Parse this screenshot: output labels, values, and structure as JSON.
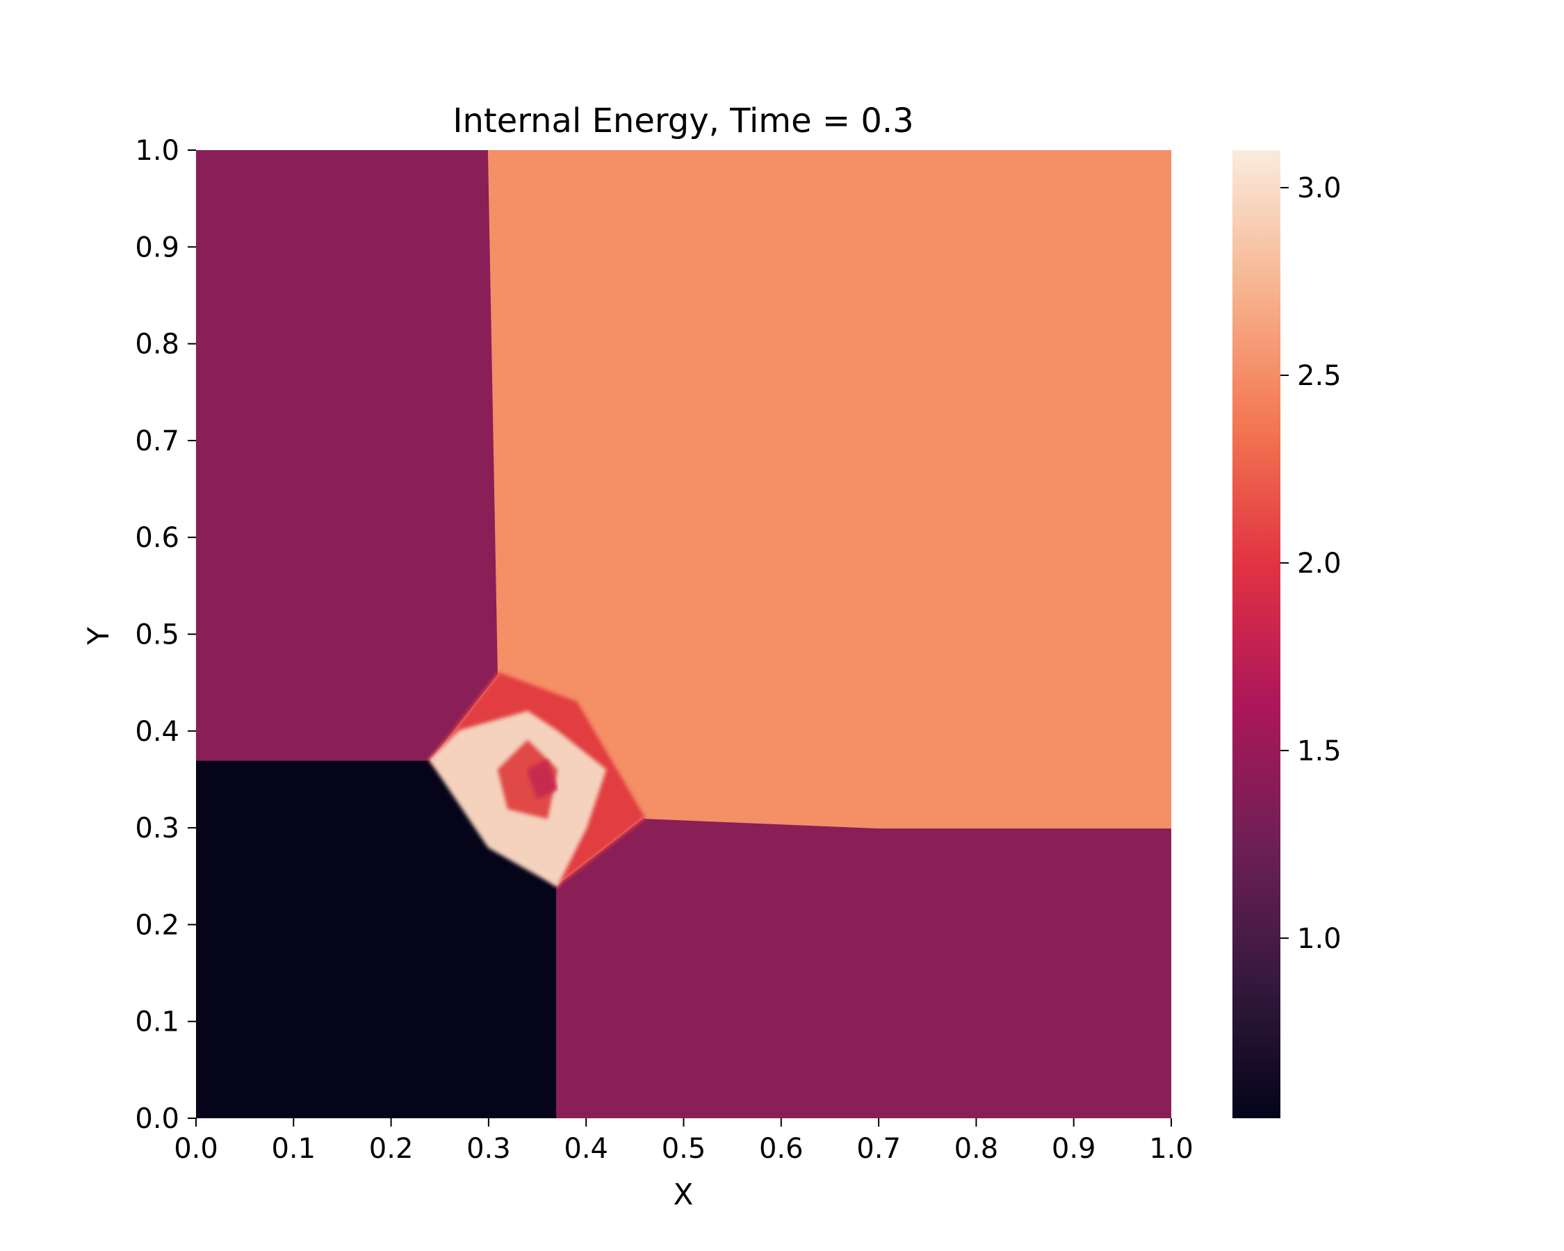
{
  "chart_data": {
    "type": "heatmap",
    "title": "Internal Energy, Time = 0.3",
    "xlabel": "X",
    "ylabel": "Y",
    "xlim": [
      0.0,
      1.0
    ],
    "ylim": [
      0.0,
      1.0
    ],
    "x_ticks": [
      "0.0",
      "0.1",
      "0.2",
      "0.3",
      "0.4",
      "0.5",
      "0.6",
      "0.7",
      "0.8",
      "0.9",
      "1.0"
    ],
    "y_ticks": [
      "0.0",
      "0.1",
      "0.2",
      "0.3",
      "0.4",
      "0.5",
      "0.6",
      "0.7",
      "0.8",
      "0.9",
      "1.0"
    ],
    "grid": false,
    "colormap": "rocket",
    "colorbar": {
      "range": [
        0.52,
        3.1
      ],
      "ticks": [
        "1.0",
        "1.5",
        "2.0",
        "2.5",
        "3.0"
      ],
      "tick_values": [
        1.0,
        1.5,
        2.0,
        2.5,
        3.0
      ],
      "colors": [
        "#03051a",
        "#36193e",
        "#701f57",
        "#ad1759",
        "#e13342",
        "#f37651",
        "#f6b48f",
        "#faebdd"
      ]
    },
    "regions": [
      {
        "name": "lower-left quadrant",
        "value": 0.55,
        "color": "#050419",
        "polygon": [
          [
            0,
            0
          ],
          [
            0.37,
            0
          ],
          [
            0.37,
            0.24
          ],
          [
            0.24,
            0.37
          ],
          [
            0,
            0.37
          ]
        ]
      },
      {
        "name": "upper-left quadrant",
        "value": 1.5,
        "color": "#8a1e57",
        "polygon": [
          [
            0,
            0.37
          ],
          [
            0.24,
            0.37
          ],
          [
            0.31,
            0.46
          ],
          [
            0.3,
            1.0
          ],
          [
            0,
            1.0
          ]
        ]
      },
      {
        "name": "lower-right quadrant",
        "value": 1.5,
        "color": "#8a1e57",
        "polygon": [
          [
            0.37,
            0
          ],
          [
            1.0,
            0
          ],
          [
            1.0,
            0.3
          ],
          [
            0.7,
            0.3
          ],
          [
            0.46,
            0.31
          ],
          [
            0.37,
            0.24
          ]
        ]
      },
      {
        "name": "upper-right quadrant",
        "value": 2.5,
        "color": "#f48f66",
        "polygon": [
          [
            0.3,
            1.0
          ],
          [
            1.0,
            1.0
          ],
          [
            1.0,
            0.3
          ],
          [
            0.7,
            0.3
          ],
          [
            0.46,
            0.31
          ],
          [
            0.31,
            0.46
          ]
        ]
      },
      {
        "name": "interaction zone",
        "value": 2.1,
        "color": "#e23c40",
        "polygon": [
          [
            0.24,
            0.37
          ],
          [
            0.31,
            0.46
          ],
          [
            0.39,
            0.43
          ],
          [
            0.46,
            0.31
          ],
          [
            0.37,
            0.24
          ]
        ]
      },
      {
        "name": "jet core",
        "value": 3.0,
        "color": "#f4d2bd",
        "polygon": [
          [
            0.24,
            0.37
          ],
          [
            0.27,
            0.4
          ],
          [
            0.34,
            0.42
          ],
          [
            0.37,
            0.4
          ],
          [
            0.42,
            0.36
          ],
          [
            0.4,
            0.3
          ],
          [
            0.37,
            0.24
          ],
          [
            0.3,
            0.28
          ]
        ]
      },
      {
        "name": "vortex ring",
        "value": 2.0,
        "color": "#e04a44",
        "polygon": [
          [
            0.31,
            0.36
          ],
          [
            0.34,
            0.39
          ],
          [
            0.37,
            0.36
          ],
          [
            0.36,
            0.31
          ],
          [
            0.32,
            0.32
          ]
        ]
      },
      {
        "name": "vortex center",
        "value": 1.8,
        "color": "#c72a4f",
        "polygon": [
          [
            0.34,
            0.36
          ],
          [
            0.36,
            0.37
          ],
          [
            0.37,
            0.34
          ],
          [
            0.35,
            0.33
          ]
        ]
      }
    ]
  }
}
